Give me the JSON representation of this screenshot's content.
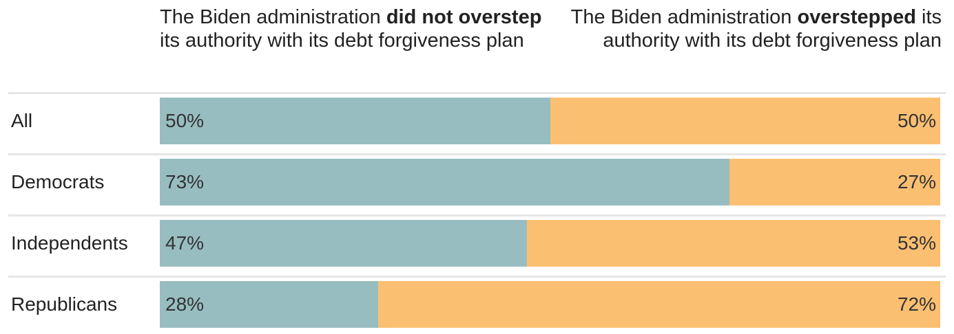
{
  "chart_data": {
    "type": "bar",
    "orientation": "horizontal-stacked-100",
    "legend": {
      "left": {
        "pre": "The Biden administration ",
        "bold": "did not overstep",
        "post": " its authority with its debt forgiveness plan"
      },
      "right": {
        "pre": "The Biden administration ",
        "bold": "overstepped",
        "post": " its authority with its debt forgiveness plan"
      }
    },
    "categories": [
      "All",
      "Democrats",
      "Independents",
      "Republicans"
    ],
    "series": [
      {
        "key": "did_not_overstep",
        "values": [
          50,
          73,
          47,
          28
        ],
        "labels": [
          "50%",
          "73%",
          "47%",
          "28%"
        ],
        "color": "#98bdc1"
      },
      {
        "key": "overstepped",
        "values": [
          50,
          27,
          53,
          72
        ],
        "labels": [
          "50%",
          "27%",
          "53%",
          "72%"
        ],
        "color": "#fbbf72"
      }
    ],
    "xlim": [
      0,
      100
    ]
  },
  "colors": {
    "separator": "#e6e6e6",
    "text": "#222222"
  }
}
